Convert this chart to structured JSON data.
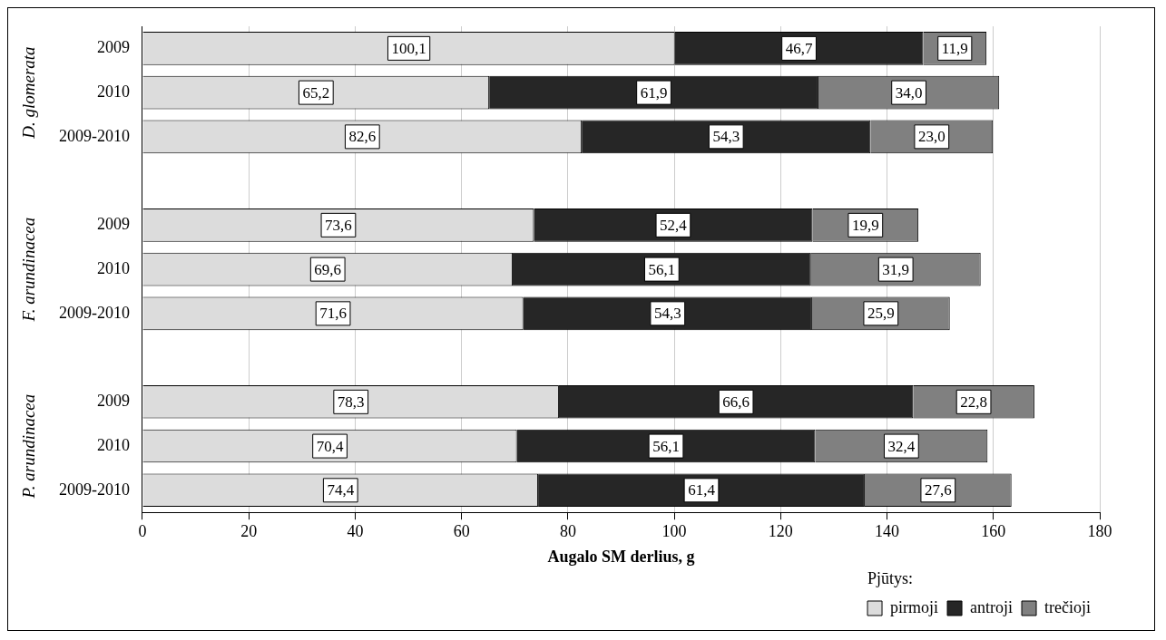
{
  "chart_data": {
    "type": "bar",
    "orientation": "horizontal",
    "stacked": true,
    "categories": [
      "2009",
      "2010",
      "2009-2010",
      null,
      "2009",
      "2010",
      "2009-2010",
      null,
      "2009",
      "2010",
      "2009-2010"
    ],
    "series": [
      {
        "name": "pirmoji",
        "color": "#dcdcdc",
        "values": [
          100.1,
          65.2,
          82.6,
          null,
          73.6,
          69.6,
          71.6,
          null,
          78.3,
          70.4,
          74.4
        ],
        "value_labels": [
          "100,1",
          "65,2",
          "82,6",
          null,
          "73,6",
          "69,6",
          "71,6",
          null,
          "78,3",
          "70,4",
          "74,4"
        ]
      },
      {
        "name": "antroji",
        "color": "#262626",
        "values": [
          46.7,
          61.9,
          54.3,
          null,
          52.4,
          56.1,
          54.3,
          null,
          66.6,
          56.1,
          61.4
        ],
        "value_labels": [
          "46,7",
          "61,9",
          "54,3",
          null,
          "52,4",
          "56,1",
          "54,3",
          null,
          "66,6",
          "56,1",
          "61,4"
        ]
      },
      {
        "name": "trečioji",
        "color": "#808080",
        "values": [
          11.9,
          34.0,
          23.0,
          null,
          19.9,
          31.9,
          25.9,
          null,
          22.8,
          32.4,
          27.6
        ],
        "value_labels": [
          "11,9",
          "34,0",
          "23,0",
          null,
          "19,9",
          "31,9",
          "25,9",
          null,
          "22,8",
          "32,4",
          "27,6"
        ]
      }
    ],
    "xlim": [
      0,
      180
    ],
    "xticks": [
      0,
      20,
      40,
      60,
      80,
      100,
      120,
      140,
      160,
      180
    ],
    "xlabel": "Augalo SM derlius, g",
    "legend_title": "Pjūtys:",
    "legend": "bottom",
    "grid": "x",
    "annotations": [
      "D. glomerata",
      "F. arundinacea",
      "P. arundinacea"
    ]
  }
}
